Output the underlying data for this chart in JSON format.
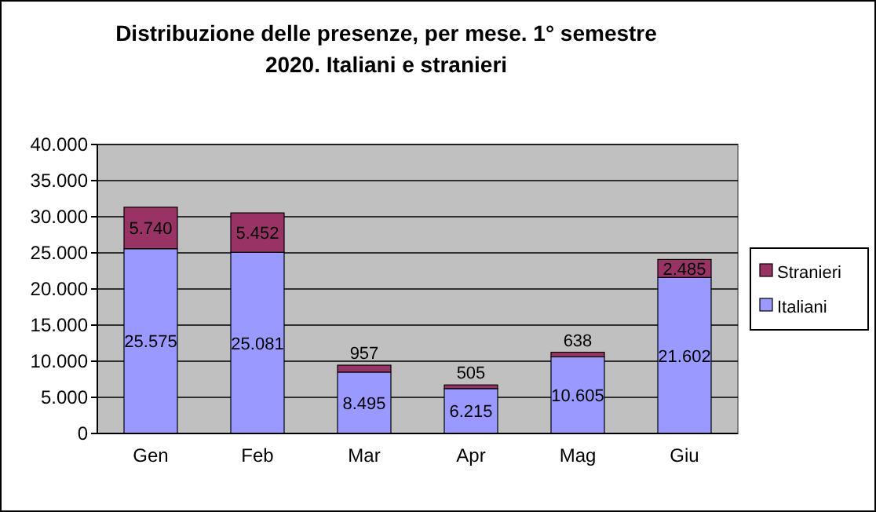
{
  "chart_data": {
    "type": "bar",
    "title": "Distribuzione delle presenze, per mese. 1° semestre 2020. Italiani  e stranieri",
    "categories": [
      "Gen",
      "Feb",
      "Mar",
      "Apr",
      "Mag",
      "Giu"
    ],
    "stacked": true,
    "series": [
      {
        "name": "Italiani",
        "color": "#9999ff",
        "values": [
          25575,
          25081,
          8495,
          6215,
          10605,
          21602
        ],
        "value_labels": [
          "25.575",
          "25.081",
          "8.495",
          "6.215",
          "10.605",
          "21.602"
        ]
      },
      {
        "name": "Stranieri",
        "color": "#993366",
        "values": [
          5740,
          5452,
          957,
          505,
          638,
          2485
        ],
        "value_labels": [
          "5.740",
          "5.452",
          "957",
          "505",
          "638",
          "2.485"
        ]
      }
    ],
    "ylim": [
      0,
      40000
    ],
    "yticks": [
      {
        "value": 0,
        "label": "0"
      },
      {
        "value": 5000,
        "label": "5.000"
      },
      {
        "value": 10000,
        "label": "10.000"
      },
      {
        "value": 15000,
        "label": "15.000"
      },
      {
        "value": 20000,
        "label": "20.000"
      },
      {
        "value": 25000,
        "label": "25.000"
      },
      {
        "value": 30000,
        "label": "30.000"
      },
      {
        "value": 35000,
        "label": "35.000"
      },
      {
        "value": 40000,
        "label": "40.000"
      }
    ],
    "grid": "y",
    "legend": "right"
  }
}
